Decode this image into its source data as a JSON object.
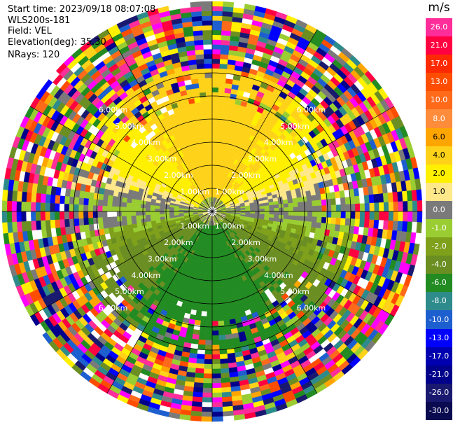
{
  "header": {
    "start_time": "Start time: 2023/09/18 08:07:08",
    "instrument": "WLS200s-181",
    "field": "Field: VEL",
    "elevation": "Elevation(deg): 35.30",
    "nrays": "NRays: 120"
  },
  "colorbar": {
    "unit": "m/s",
    "levels": [
      {
        "label": "26.0",
        "color": "#ff2d9a"
      },
      {
        "label": "21.0",
        "color": "#ff0040"
      },
      {
        "label": "17.0",
        "color": "#ff2a00"
      },
      {
        "label": "13.0",
        "color": "#ff4d00"
      },
      {
        "label": "10.0",
        "color": "#ff6a1a"
      },
      {
        "label": "8.0",
        "color": "#ff8c3a"
      },
      {
        "label": "6.0",
        "color": "#ffa500"
      },
      {
        "label": "4.0",
        "color": "#ffd21a"
      },
      {
        "label": "2.0",
        "color": "#fff000"
      },
      {
        "label": "1.0",
        "color": "#ffe88a"
      },
      {
        "label": "0.0",
        "color": "#7a7a7a"
      },
      {
        "label": "-1.0",
        "color": "#9acd32"
      },
      {
        "label": "-2.0",
        "color": "#7fa01a"
      },
      {
        "label": "-4.0",
        "color": "#6b8e23"
      },
      {
        "label": "-6.0",
        "color": "#228b22"
      },
      {
        "label": "-8.0",
        "color": "#2e8b8b"
      },
      {
        "label": "-10.0",
        "color": "#1e5fcf"
      },
      {
        "label": "-13.0",
        "color": "#0000ff"
      },
      {
        "label": "-17.0",
        "color": "#0000b0"
      },
      {
        "label": "-21.0",
        "color": "#00008b"
      },
      {
        "label": "-26.0",
        "color": "#191970"
      },
      {
        "label": "-30.0",
        "color": "#0a0a50"
      }
    ]
  },
  "chart_data": {
    "type": "heatmap",
    "projection": "polar (PPI)",
    "field": "VEL",
    "units": "m/s",
    "elevation_deg": 35.3,
    "nrays": 120,
    "range_rings_km": [
      1,
      2,
      3,
      4,
      5,
      6
    ],
    "range_ring_labels": [
      "1.00km",
      "2.00km",
      "3.00km",
      "4.00km",
      "5.00km",
      "6.00km"
    ],
    "spoke_angles_deg": [
      0,
      30,
      60,
      90,
      120,
      150,
      180,
      210,
      240,
      270,
      300,
      330
    ],
    "velocity_pattern": {
      "north_sector": "positive 2 to 6 m/s (yellow/orange)",
      "east_west_band": "near 0 m/s (grey)",
      "south_sector": "negative -2 to -6 m/s (olive/green)",
      "outer_range_km": ">4, noise (random colors)"
    },
    "color_range": [
      -30.0,
      26.0
    ]
  }
}
